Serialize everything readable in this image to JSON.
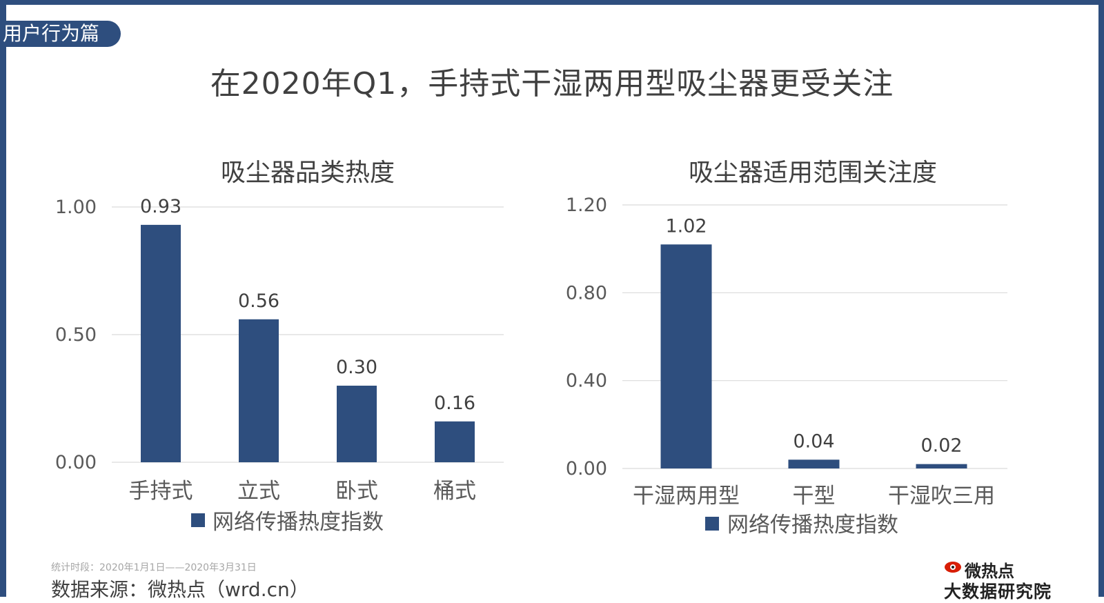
{
  "section_tab": "用户行为篇",
  "page_title": "在2020年Q1，手持式干湿两用型吸尘器更受关注",
  "chart_data": [
    {
      "type": "bar",
      "title": "吸尘器品类热度",
      "categories": [
        "手持式",
        "立式",
        "卧式",
        "桶式"
      ],
      "series": [
        {
          "name": "网络传播热度指数",
          "values": [
            0.93,
            0.56,
            0.3,
            0.16
          ]
        }
      ],
      "value_labels": [
        "0.93",
        "0.56",
        "0.30",
        "0.16"
      ],
      "ylim": [
        0,
        1.0
      ],
      "yticks": [
        0,
        0.5,
        1.0
      ],
      "ytick_labels": [
        "0.00",
        "0.50",
        "1.00"
      ],
      "grid": true,
      "legend": "bottom",
      "color": "#2e4e7e"
    },
    {
      "type": "bar",
      "title": "吸尘器适用范围关注度",
      "categories": [
        "干湿两用型",
        "干型",
        "干湿吹三用"
      ],
      "series": [
        {
          "name": "网络传播热度指数",
          "values": [
            1.02,
            0.04,
            0.02
          ]
        }
      ],
      "value_labels": [
        "1.02",
        "0.04",
        "0.02"
      ],
      "ylim": [
        0,
        1.2
      ],
      "yticks": [
        0,
        0.4,
        0.8,
        1.2
      ],
      "ytick_labels": [
        "0.00",
        "0.40",
        "0.80",
        "1.20"
      ],
      "grid": true,
      "legend": "bottom",
      "color": "#2e4e7e"
    }
  ],
  "footer": {
    "period": "统计时段：2020年1月1日——2020年3月31日",
    "source": "数据来源：微热点（wrd.cn）"
  },
  "logo": {
    "line1": "微热点",
    "line2": "大数据研究院"
  }
}
